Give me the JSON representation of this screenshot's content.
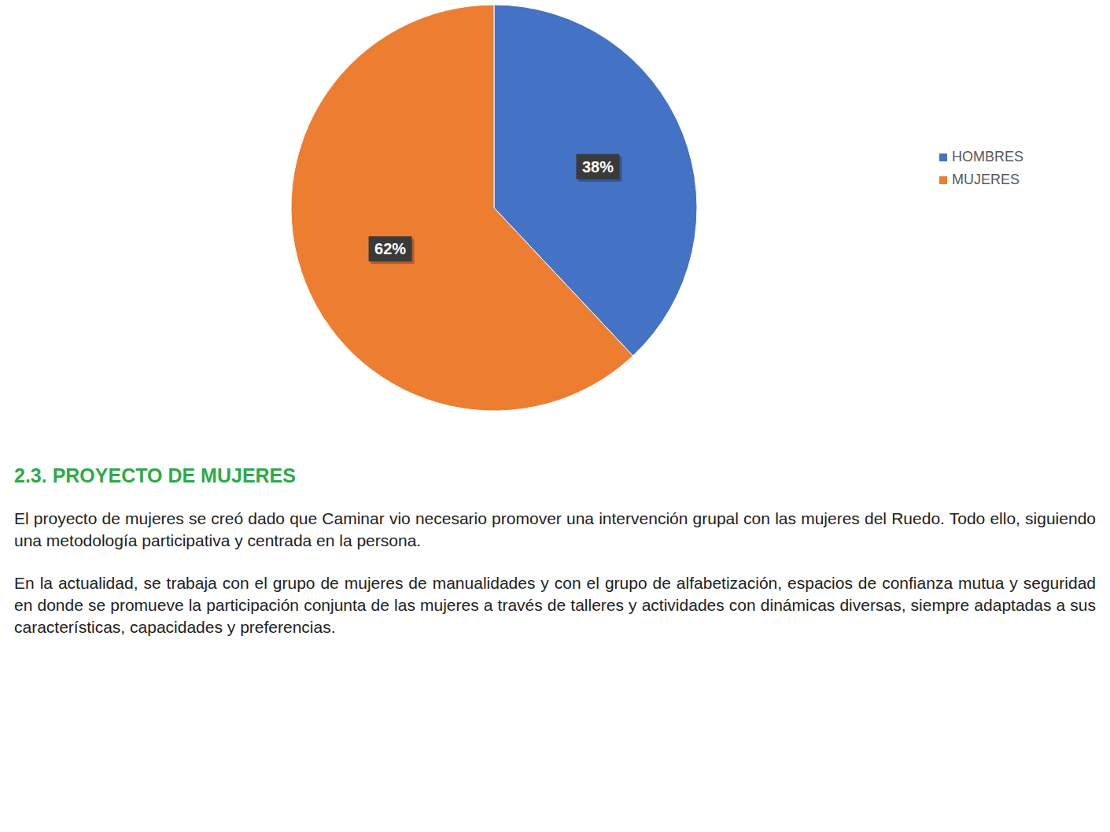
{
  "chart_data": {
    "type": "pie",
    "categories": [
      "HOMBRES",
      "MUJERES"
    ],
    "values": [
      38,
      62
    ],
    "value_labels": [
      "38%",
      "62%"
    ],
    "colors": [
      "#4472c4",
      "#ed7d31"
    ],
    "data_labels": true,
    "legend": "right"
  },
  "document": {
    "heading": "2.3. PROYECTO DE MUJERES",
    "paragraphs": [
      "El proyecto de mujeres se creó dado que Caminar vio necesario promover una intervención grupal con las mujeres del Ruedo. Todo ello, siguiendo una metodología participativa y centrada en la persona.",
      "En la actualidad, se trabaja con el grupo de mujeres de manualidades y con el grupo de alfabetización, espacios de confianza mutua y seguridad en donde se promueve la participación conjunta de las mujeres a través de talleres y actividades con dinámicas diversas, siempre adaptadas a sus características, capacidades y preferencias."
    ]
  }
}
